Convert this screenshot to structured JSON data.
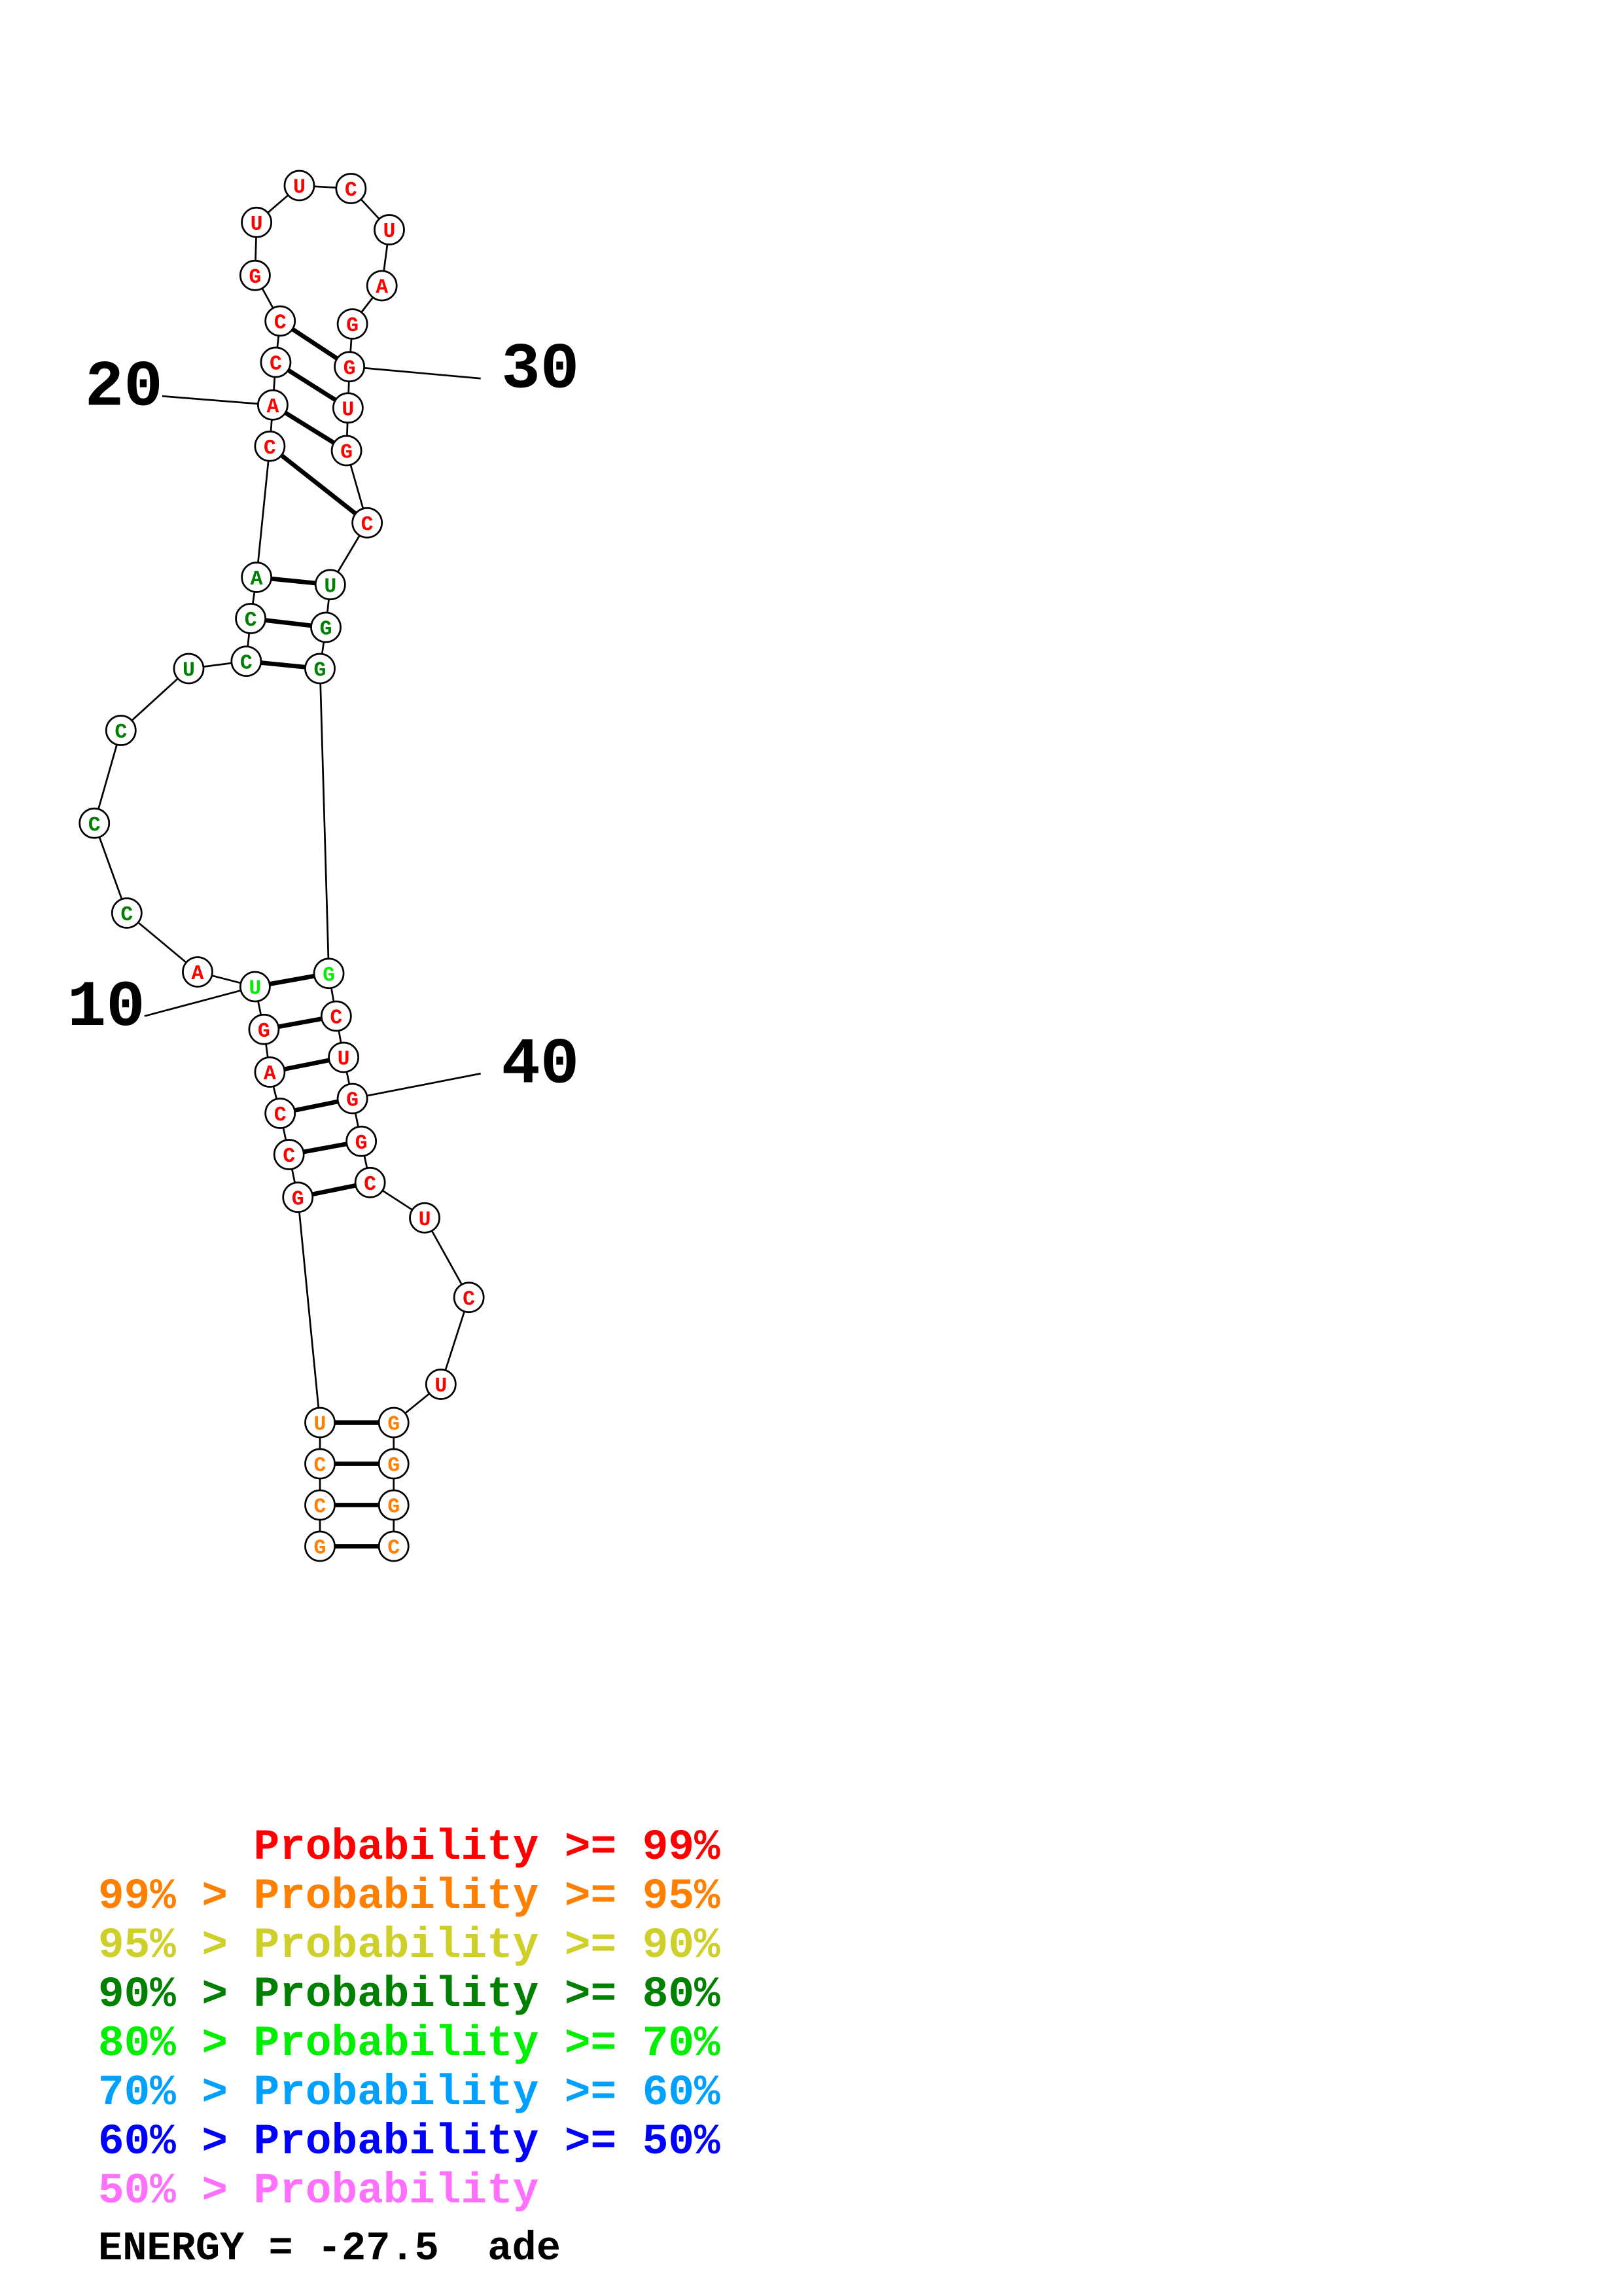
{
  "sequence": [
    {
      "base": "G",
      "prob": "orange"
    },
    {
      "base": "C",
      "prob": "orange"
    },
    {
      "base": "C",
      "prob": "orange"
    },
    {
      "base": "U",
      "prob": "orange"
    },
    {
      "base": "G",
      "prob": "red"
    },
    {
      "base": "C",
      "prob": "red"
    },
    {
      "base": "C",
      "prob": "red"
    },
    {
      "base": "A",
      "prob": "red"
    },
    {
      "base": "G",
      "prob": "red"
    },
    {
      "base": "U",
      "prob": "lightgreen"
    },
    {
      "base": "A",
      "prob": "red"
    },
    {
      "base": "C",
      "prob": "darkgreen"
    },
    {
      "base": "C",
      "prob": "darkgreen"
    },
    {
      "base": "C",
      "prob": "darkgreen"
    },
    {
      "base": "U",
      "prob": "darkgreen"
    },
    {
      "base": "C",
      "prob": "darkgreen"
    },
    {
      "base": "C",
      "prob": "darkgreen"
    },
    {
      "base": "A",
      "prob": "darkgreen"
    },
    {
      "base": "C",
      "prob": "red"
    },
    {
      "base": "A",
      "prob": "red"
    },
    {
      "base": "C",
      "prob": "red"
    },
    {
      "base": "C",
      "prob": "red"
    },
    {
      "base": "G",
      "prob": "red"
    },
    {
      "base": "U",
      "prob": "red"
    },
    {
      "base": "U",
      "prob": "red"
    },
    {
      "base": "C",
      "prob": "red"
    },
    {
      "base": "U",
      "prob": "red"
    },
    {
      "base": "A",
      "prob": "red"
    },
    {
      "base": "G",
      "prob": "red"
    },
    {
      "base": "G",
      "prob": "red"
    },
    {
      "base": "U",
      "prob": "red"
    },
    {
      "base": "G",
      "prob": "red"
    },
    {
      "base": "C",
      "prob": "red"
    },
    {
      "base": "U",
      "prob": "darkgreen"
    },
    {
      "base": "G",
      "prob": "darkgreen"
    },
    {
      "base": "G",
      "prob": "darkgreen"
    },
    {
      "base": "G",
      "prob": "lightgreen"
    },
    {
      "base": "C",
      "prob": "red"
    },
    {
      "base": "U",
      "prob": "red"
    },
    {
      "base": "G",
      "prob": "red"
    },
    {
      "base": "G",
      "prob": "red"
    },
    {
      "base": "C",
      "prob": "red"
    },
    {
      "base": "U",
      "prob": "red"
    },
    {
      "base": "C",
      "prob": "red"
    },
    {
      "base": "U",
      "prob": "red"
    },
    {
      "base": "G",
      "prob": "orange"
    },
    {
      "base": "G",
      "prob": "orange"
    },
    {
      "base": "G",
      "prob": "orange"
    },
    {
      "base": "C",
      "prob": "orange"
    }
  ],
  "pairs": [
    [
      1,
      49
    ],
    [
      2,
      48
    ],
    [
      3,
      47
    ],
    [
      4,
      46
    ],
    [
      5,
      42
    ],
    [
      6,
      41
    ],
    [
      7,
      40
    ],
    [
      8,
      39
    ],
    [
      9,
      38
    ],
    [
      10,
      37
    ],
    [
      16,
      36
    ],
    [
      17,
      35
    ],
    [
      18,
      34
    ],
    [
      19,
      33
    ],
    [
      20,
      32
    ],
    [
      21,
      31
    ],
    [
      22,
      30
    ]
  ],
  "numbers": [
    {
      "label": "10",
      "index": 10
    },
    {
      "label": "20",
      "index": 20
    },
    {
      "label": "30",
      "index": 30
    },
    {
      "label": "40",
      "index": 40
    }
  ],
  "colors": {
    "red": "#ff0000",
    "orange": "#ff7f00",
    "yellow": "#cfcf2a",
    "darkgreen": "#008000",
    "lightgreen": "#00ee00",
    "cyan": "#00a0ff",
    "blue": "#0000ff",
    "pink": "#ff70ff",
    "line": "#000000"
  },
  "legend": [
    {
      "prefix": "    ",
      "text": "Probability >= 99%",
      "color": "red"
    },
    {
      "prefix": "99% > ",
      "text": "Probability >= 95%",
      "color": "orange"
    },
    {
      "prefix": "95% > ",
      "text": "Probability >= 90%",
      "color": "yellow"
    },
    {
      "prefix": "90% > ",
      "text": "Probability >= 80%",
      "color": "darkgreen"
    },
    {
      "prefix": "80% > ",
      "text": "Probability >= 70%",
      "color": "lightgreen"
    },
    {
      "prefix": "70% > ",
      "text": "Probability >= 60%",
      "color": "cyan"
    },
    {
      "prefix": "60% > ",
      "text": "Probability >= 50%",
      "color": "blue"
    },
    {
      "prefix": "50% > ",
      "text": "Probability",
      "color": "pink"
    }
  ],
  "energy_text": "ENERGY = -27.5  ade"
}
